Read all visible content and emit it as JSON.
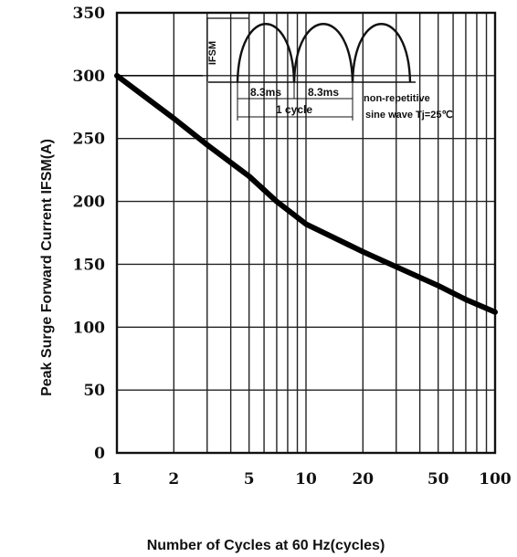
{
  "chart_data": {
    "type": "line",
    "xlabel": "Number of Cycles at 60 Hz(cycles)",
    "ylabel": "Peak Surge Forward Current IFSM(A)",
    "xscale": "log",
    "xlim": [
      1,
      100
    ],
    "ylim": [
      0,
      350
    ],
    "xticks": [
      1,
      2,
      5,
      10,
      20,
      50,
      100
    ],
    "xtick_labels": [
      "1",
      "2",
      "5",
      "10",
      "20",
      "50",
      "100"
    ],
    "yticks": [
      0,
      50,
      100,
      150,
      200,
      250,
      300,
      350
    ],
    "ytick_labels": [
      "0",
      "50",
      "100",
      "150",
      "200",
      "250",
      "300",
      "350"
    ],
    "grid": true,
    "series": [
      {
        "x": [
          1,
          2,
          3,
          5,
          7,
          10,
          20,
          30,
          50,
          70,
          100
        ],
        "y": [
          300,
          266,
          245,
          220,
          200,
          182,
          160,
          148,
          133,
          122,
          112
        ]
      }
    ],
    "annotations": {
      "inset_ylabel": "IFSM",
      "half_period_1": "8.3ms",
      "half_period_2": "8.3ms",
      "cycle_label": "1 cycle",
      "note_line1": "non-repetitive",
      "note_line2": "sine wave  Tj=25℃"
    }
  }
}
